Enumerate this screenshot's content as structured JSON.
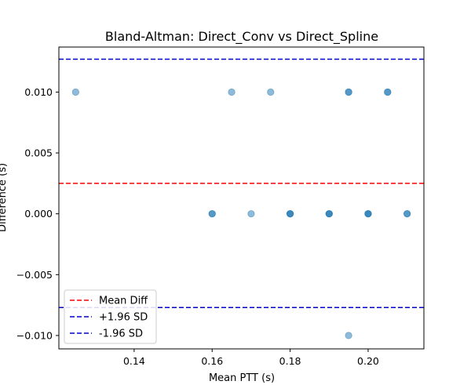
{
  "chart_data": {
    "type": "scatter",
    "title": "Bland-Altman: Direct_Conv vs Direct_Spline",
    "xlabel": "Mean PTT (s)",
    "ylabel": "Difference (s)",
    "xlim": [
      0.1207,
      0.2143
    ],
    "ylim": [
      -0.0111,
      0.0137
    ],
    "xticks": [
      0.14,
      0.16,
      0.18,
      0.2
    ],
    "xtick_labels": [
      "0.14",
      "0.16",
      "0.18",
      "0.20"
    ],
    "yticks": [
      -0.01,
      -0.005,
      0.0,
      0.005,
      0.01
    ],
    "ytick_labels": [
      "−0.010",
      "−0.005",
      "0.000",
      "0.005",
      "0.010"
    ],
    "grid": false,
    "legend_position": "lower-left",
    "point_color": "#1f77b4",
    "point_alpha": 0.5,
    "points": [
      {
        "x": 0.125,
        "y": 0.01
      },
      {
        "x": 0.165,
        "y": 0.01
      },
      {
        "x": 0.175,
        "y": 0.01
      },
      {
        "x": 0.195,
        "y": 0.01
      },
      {
        "x": 0.195,
        "y": 0.01
      },
      {
        "x": 0.205,
        "y": 0.01
      },
      {
        "x": 0.205,
        "y": 0.01
      },
      {
        "x": 0.16,
        "y": 0.0
      },
      {
        "x": 0.16,
        "y": 0.0
      },
      {
        "x": 0.17,
        "y": 0.0
      },
      {
        "x": 0.18,
        "y": 0.0
      },
      {
        "x": 0.18,
        "y": 0.0
      },
      {
        "x": 0.18,
        "y": 0.0
      },
      {
        "x": 0.19,
        "y": 0.0
      },
      {
        "x": 0.19,
        "y": 0.0
      },
      {
        "x": 0.19,
        "y": 0.0
      },
      {
        "x": 0.2,
        "y": 0.0
      },
      {
        "x": 0.2,
        "y": 0.0
      },
      {
        "x": 0.2,
        "y": 0.0
      },
      {
        "x": 0.21,
        "y": 0.0
      },
      {
        "x": 0.21,
        "y": 0.0
      },
      {
        "x": 0.195,
        "y": -0.01
      }
    ],
    "reference_lines": [
      {
        "name": "Mean Diff",
        "y": 0.0025,
        "color": "#ff0000"
      },
      {
        "name": "+1.96 SD",
        "y": 0.0127,
        "color": "#0000cc"
      },
      {
        "name": "-1.96 SD",
        "y": -0.0077,
        "color": "#0000cc"
      }
    ]
  }
}
